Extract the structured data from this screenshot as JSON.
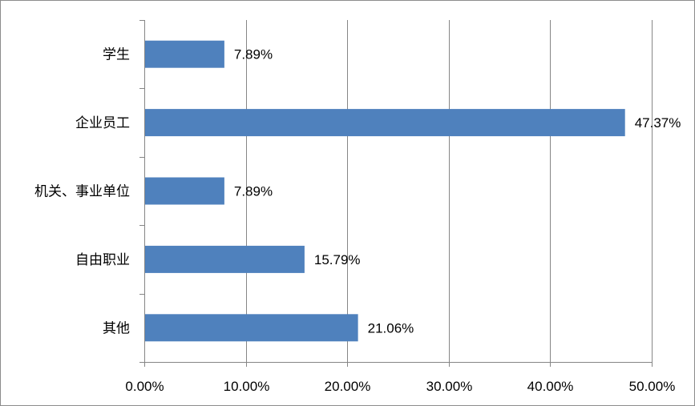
{
  "chart_data": {
    "type": "bar",
    "orientation": "horizontal",
    "categories": [
      "学生",
      "企业员工",
      "机关、事业单位",
      "自由职业",
      "其他"
    ],
    "values": [
      7.89,
      47.37,
      7.89,
      15.79,
      21.06
    ],
    "data_labels": [
      "7.89%",
      "47.37%",
      "7.89%",
      "15.79%",
      "21.06%"
    ],
    "xlim": [
      0,
      50
    ],
    "x_ticks": [
      0,
      10,
      20,
      30,
      40,
      50
    ],
    "x_tick_labels": [
      "0.00%",
      "10.00%",
      "20.00%",
      "30.00%",
      "40.00%",
      "50.00%"
    ],
    "title": "",
    "xlabel": "",
    "ylabel": "",
    "grid": "vertical",
    "legend": "none",
    "colors": {
      "bar": "#4F81BD",
      "grid": "#868686",
      "axis": "#868686",
      "border": "#8c8c8c"
    }
  }
}
